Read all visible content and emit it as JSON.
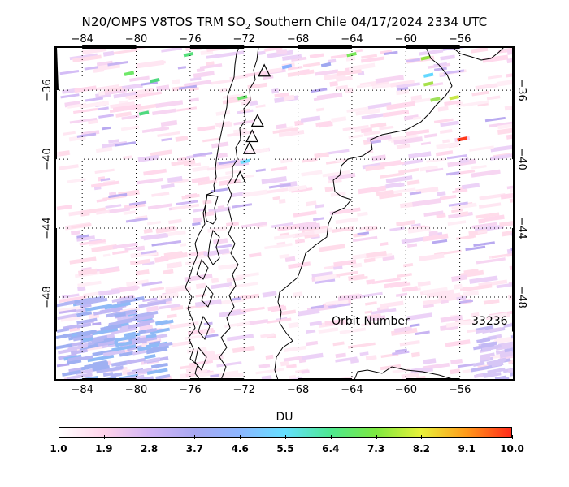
{
  "title": {
    "prefix": "N20/OMPS V8TOS TRM SO",
    "subscript": "2",
    "suffix": " Southern Chile 04/17/2024 2334 UTC"
  },
  "map": {
    "lon_range": [
      -86,
      -52
    ],
    "lat_range": [
      -33.5,
      -52.8
    ],
    "lon_ticks": [
      -84,
      -80,
      -76,
      -72,
      -68,
      -64,
      -60,
      -56
    ],
    "lat_ticks": [
      -36,
      -40,
      -44,
      -48
    ],
    "lon_tick_labels": [
      "−84",
      "−80",
      "−76",
      "−72",
      "−68",
      "−64",
      "−60",
      "−56"
    ],
    "lat_tick_labels": [
      "−36",
      "−40",
      "−44",
      "−48"
    ],
    "volcano_marker": "triangle",
    "volcanoes": [
      {
        "lon": -70.5,
        "lat": -34.9
      },
      {
        "lon": -71.0,
        "lat": -37.8
      },
      {
        "lon": -71.4,
        "lat": -38.7
      },
      {
        "lon": -71.6,
        "lat": -39.4
      },
      {
        "lon": -72.3,
        "lat": -41.1
      }
    ],
    "highlight_swaths": [
      {
        "lon": -58.9,
        "lat": -34.1,
        "color": "#96e040"
      },
      {
        "lon": -64.4,
        "lat": -33.9,
        "color": "#7be85a"
      },
      {
        "lon": -76.5,
        "lat": -33.9,
        "color": "#56e07a"
      },
      {
        "lon": -79.0,
        "lat": -35.4,
        "color": "#4fd97f"
      },
      {
        "lon": -80.9,
        "lat": -35.0,
        "color": "#6fe868"
      },
      {
        "lon": -58.7,
        "lat": -35.1,
        "color": "#63d8ff"
      },
      {
        "lon": -58.7,
        "lat": -35.6,
        "color": "#a6e14a"
      },
      {
        "lon": -56.8,
        "lat": -36.4,
        "color": "#c8e84a"
      },
      {
        "lon": -58.2,
        "lat": -36.5,
        "color": "#9fe05a"
      },
      {
        "lon": -79.8,
        "lat": -37.3,
        "color": "#4fd97f"
      },
      {
        "lon": -72.5,
        "lat": -36.4,
        "color": "#69e36a"
      },
      {
        "lon": -56.2,
        "lat": -38.8,
        "color": "#ff3a1a"
      },
      {
        "lon": -72.3,
        "lat": -40.1,
        "color": "#6fe0ff"
      },
      {
        "lon": -69.2,
        "lat": -34.6,
        "color": "#8ab0ff"
      },
      {
        "lon": -66.3,
        "lat": -34.5,
        "color": "#a0a8f0"
      }
    ]
  },
  "annotation": {
    "orbit_label": "Orbit Number",
    "orbit_value": "33236"
  },
  "colorbar": {
    "unit": "DU",
    "min": 1.0,
    "max": 10.0,
    "tick_labels": [
      "1.0",
      "1.9",
      "2.8",
      "3.7",
      "4.6",
      "5.5",
      "6.4",
      "7.3",
      "8.2",
      "9.1",
      "10.0"
    ],
    "colors": [
      "#ffffff",
      "#ffd3ea",
      "#d2b5f5",
      "#a8a8f2",
      "#8cb6ff",
      "#64e0ff",
      "#4de890",
      "#7ce840",
      "#e8f23a",
      "#ff9a1a",
      "#ff2a1a"
    ]
  }
}
